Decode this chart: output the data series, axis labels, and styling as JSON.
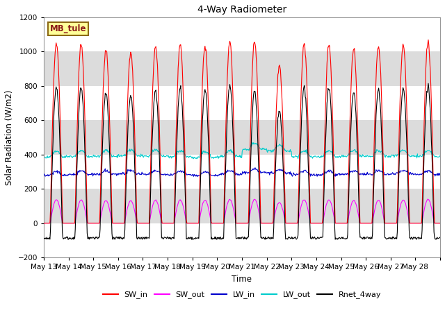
{
  "title": "4-Way Radiometer",
  "xlabel": "Time",
  "ylabel": "Solar Radiation (W/m2)",
  "ylim": [
    -200,
    1200
  ],
  "yticks": [
    -200,
    0,
    200,
    400,
    600,
    800,
    1000,
    1200
  ],
  "station_label": "MB_tule",
  "bg_color": "#ffffff",
  "plot_bg_color": "#e8e8e8",
  "line_colors": {
    "SW_in": "#ff0000",
    "SW_out": "#ff00ff",
    "LW_in": "#0000cc",
    "LW_out": "#00cccc",
    "Rnet_4way": "#000000"
  },
  "legend_colors": [
    "#ff0000",
    "#ff00ff",
    "#0000cc",
    "#00cccc",
    "#000000"
  ],
  "legend_labels": [
    "SW_in",
    "SW_out",
    "LW_in",
    "LW_out",
    "Rnet_4way"
  ],
  "x_tick_labels": [
    "May 13",
    "May 14",
    "May 15",
    "May 16",
    "May 17",
    "May 18",
    "May 19",
    "May 20",
    "May 21",
    "May 22",
    "May 23",
    "May 24",
    "May 25",
    "May 26",
    "May 27",
    "May 28"
  ],
  "n_days": 16,
  "peak_sw": [
    1050,
    1040,
    1010,
    1000,
    1030,
    1040,
    1030,
    1055,
    1060,
    920,
    1050,
    1040,
    1020,
    1030,
    1040,
    1060
  ],
  "lw_in_base": [
    280,
    283,
    285,
    287,
    284,
    282,
    278,
    284,
    295,
    292,
    283,
    283,
    285,
    285,
    287,
    284
  ],
  "lw_out_base": [
    385,
    388,
    390,
    392,
    390,
    387,
    382,
    388,
    430,
    420,
    387,
    387,
    390,
    390,
    392,
    388
  ]
}
